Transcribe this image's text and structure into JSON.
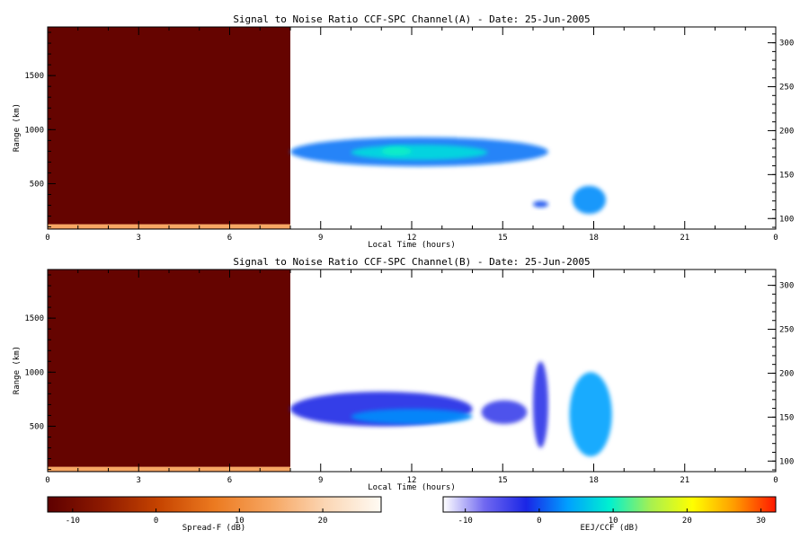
{
  "chart_data": [
    {
      "type": "heatmap",
      "title": "Signal to Noise Ratio CCF-SPC Channel(A) - Date: 25-Jun-2005",
      "xlabel": "Local Time (hours)",
      "ylabel": "Range (km)",
      "xlim": [
        0,
        24
      ],
      "ylim": [
        80,
        1950
      ],
      "xticks": [
        "0",
        "3",
        "6",
        "9",
        "12",
        "15",
        "18",
        "21",
        "0"
      ],
      "yticks": [
        "500",
        "1000",
        "1500"
      ],
      "right_ylim": [
        88,
        318
      ],
      "right_yticks": [
        "100",
        "150",
        "200",
        "250",
        "300"
      ],
      "regions": [
        {
          "name": "Spread-F",
          "x_range": [
            0,
            8
          ],
          "y_range": [
            80,
            1950
          ],
          "level_db": -12
        },
        {
          "name": "Spread-F",
          "x_range": [
            0,
            8
          ],
          "y_range": [
            85,
            125
          ],
          "level_db": 14
        },
        {
          "name": "EEJ/CCF",
          "x_range": [
            8,
            16.5
          ],
          "y_range": [
            660,
            930
          ],
          "level_db": 2
        },
        {
          "name": "EEJ/CCF",
          "x_range": [
            10,
            14.5
          ],
          "y_range": [
            720,
            860
          ],
          "level_db": 8
        },
        {
          "name": "EEJ/CCF",
          "x_range": [
            11,
            12
          ],
          "y_range": [
            760,
            840
          ],
          "level_db": 10
        },
        {
          "name": "EEJ/CCF",
          "x_range": [
            16,
            16.5
          ],
          "y_range": [
            280,
            340
          ],
          "level_db": 0
        },
        {
          "name": "EEJ/CCF",
          "x_range": [
            17.3,
            18.4
          ],
          "y_range": [
            220,
            480
          ],
          "level_db": 3
        }
      ]
    },
    {
      "type": "heatmap",
      "title": "Signal to Noise Ratio CCF-SPC Channel(B) - Date: 25-Jun-2005",
      "xlabel": "Local Time (hours)",
      "ylabel": "Range (km)",
      "xlim": [
        0,
        24
      ],
      "ylim": [
        80,
        1950
      ],
      "xticks": [
        "0",
        "3",
        "6",
        "9",
        "12",
        "15",
        "18",
        "21",
        "0"
      ],
      "yticks": [
        "500",
        "1000",
        "1500"
      ],
      "right_ylim": [
        88,
        318
      ],
      "right_yticks": [
        "100",
        "150",
        "200",
        "250",
        "300"
      ],
      "regions": [
        {
          "name": "Spread-F",
          "x_range": [
            0,
            8
          ],
          "y_range": [
            80,
            1950
          ],
          "level_db": -12
        },
        {
          "name": "Spread-F",
          "x_range": [
            0,
            8
          ],
          "y_range": [
            85,
            125
          ],
          "level_db": 14
        },
        {
          "name": "EEJ/CCF",
          "x_range": [
            8,
            14
          ],
          "y_range": [
            500,
            820
          ],
          "level_db": -2
        },
        {
          "name": "EEJ/CCF",
          "x_range": [
            10,
            14
          ],
          "y_range": [
            520,
            660
          ],
          "level_db": 3
        },
        {
          "name": "EEJ/CCF",
          "x_range": [
            14.3,
            15.8
          ],
          "y_range": [
            520,
            740
          ],
          "level_db": -4
        },
        {
          "name": "EEJ/CCF",
          "x_range": [
            16,
            16.5
          ],
          "y_range": [
            300,
            1100
          ],
          "level_db": -3
        },
        {
          "name": "EEJ/CCF",
          "x_range": [
            17.2,
            18.6
          ],
          "y_range": [
            220,
            1000
          ],
          "level_db": 4
        }
      ]
    }
  ],
  "colorbars": [
    {
      "label": "Spread-F (dB)",
      "ticks": [
        "-10",
        "0",
        "10",
        "20"
      ],
      "range": [
        -13,
        27
      ],
      "colors": [
        "#5e0000",
        "#8e1a00",
        "#c64400",
        "#ec7a20",
        "#f6a560",
        "#fbd6b4",
        "#fffbf4"
      ]
    },
    {
      "label": "EEJ/CCF (dB)",
      "ticks": [
        "-10",
        "0",
        "10",
        "20",
        "30"
      ],
      "range": [
        -13,
        32
      ],
      "colors": [
        "#ffffff",
        "#7068f0",
        "#1a26e6",
        "#00a0ff",
        "#00f0d0",
        "#a8f050",
        "#ffff00",
        "#ff9c00",
        "#ff1800"
      ]
    }
  ]
}
